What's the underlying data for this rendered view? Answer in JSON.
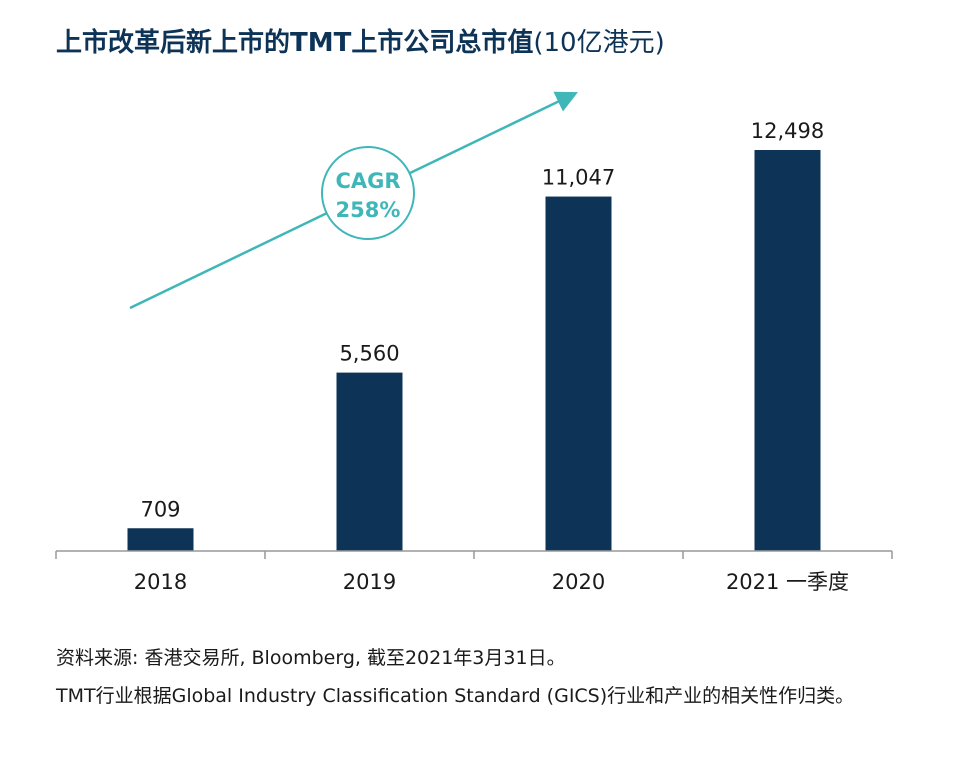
{
  "title": "上市改革后新上市的TMT上市公司总市值",
  "title_unit": "(10亿港元)",
  "chart_data": {
    "type": "bar",
    "categories": [
      "2018",
      "2019",
      "2020",
      "2021 一季度"
    ],
    "values": [
      709,
      5560,
      11047,
      12498
    ],
    "value_labels": [
      "709",
      "5,560",
      "11,047",
      "12,498"
    ],
    "ylim": [
      0,
      14000
    ],
    "grid": false,
    "annotation": {
      "line1": "CAGR",
      "line2": "258%"
    },
    "colors": {
      "bar": "#0d3357",
      "accent": "#3fb6b8",
      "axis": "#999999"
    }
  },
  "notes": {
    "source": "资料来源: 香港交易所, Bloomberg, 截至2021年3月31日。",
    "classification": "TMT行业根据Global Industry Classification Standard (GICS)行业和产业的相关性作归类。"
  }
}
